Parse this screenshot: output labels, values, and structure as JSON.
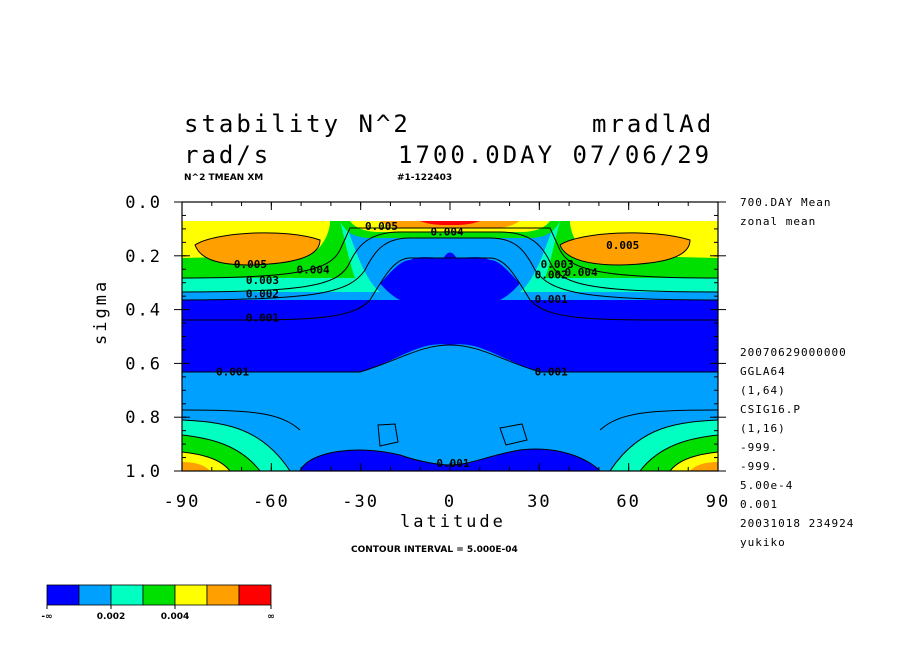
{
  "header": {
    "title_left": "stability N^2",
    "title_right": "mradlAd",
    "units": "rad/s",
    "day_date": "1700.0DAY 07/06/29",
    "var_label": "N^2 TMEAN XM",
    "run_id": "#1-122403"
  },
  "side_info": {
    "lines_top": [
      "700.DAY Mean",
      "zonal mean"
    ],
    "lines_bottom": [
      "20070629000000",
      "GGLA64",
      "(1,64)",
      "CSIG16.P",
      "(1,16)",
      "-999.",
      "-999.",
      "5.00e-4",
      "0.001",
      "20031018 234924",
      "yukiko"
    ]
  },
  "footer": {
    "contour_interval": "CONTOUR INTERVAL = 5.000E-04"
  },
  "chart_data": {
    "type": "heatmap",
    "title": "stability N^2",
    "xlabel": "latitude",
    "ylabel": "sigma",
    "xlim": [
      -90,
      90
    ],
    "ylim": [
      1.0,
      0.0
    ],
    "x_ticks": [
      "-90",
      "-60",
      "-30",
      "0",
      "30",
      "60",
      "90"
    ],
    "y_ticks": [
      "0.0",
      "0.2",
      "0.4",
      "0.6",
      "0.8",
      "1.0"
    ],
    "contour_labels": [
      {
        "text": "0.005",
        "x": -67,
        "y": 0.23
      },
      {
        "text": "0.004",
        "x": -46,
        "y": 0.25
      },
      {
        "text": "0.003",
        "x": -63,
        "y": 0.29
      },
      {
        "text": "0.002",
        "x": -63,
        "y": 0.34
      },
      {
        "text": "0.001",
        "x": -63,
        "y": 0.43
      },
      {
        "text": "0.001",
        "x": -73,
        "y": 0.63
      },
      {
        "text": "0.005",
        "x": -23,
        "y": 0.09
      },
      {
        "text": "0.004",
        "x": -1,
        "y": 0.11
      },
      {
        "text": "0.005",
        "x": 58,
        "y": 0.16
      },
      {
        "text": "0.004",
        "x": 44,
        "y": 0.26
      },
      {
        "text": "0.003",
        "x": 36,
        "y": 0.23
      },
      {
        "text": "0.002",
        "x": 34,
        "y": 0.27
      },
      {
        "text": "0.001",
        "x": 34,
        "y": 0.36
      },
      {
        "text": "0.001",
        "x": 34,
        "y": 0.63
      },
      {
        "text": "0.001",
        "x": 1,
        "y": 0.97
      }
    ],
    "colorbar": {
      "colors": [
        "#0000ff",
        "#00a0ff",
        "#00ffc0",
        "#00e000",
        "#ffff00",
        "#ffa000",
        "#ff0000"
      ],
      "tick_labels": [
        "-∞",
        "0.002",
        "0.004",
        "∞"
      ]
    }
  }
}
